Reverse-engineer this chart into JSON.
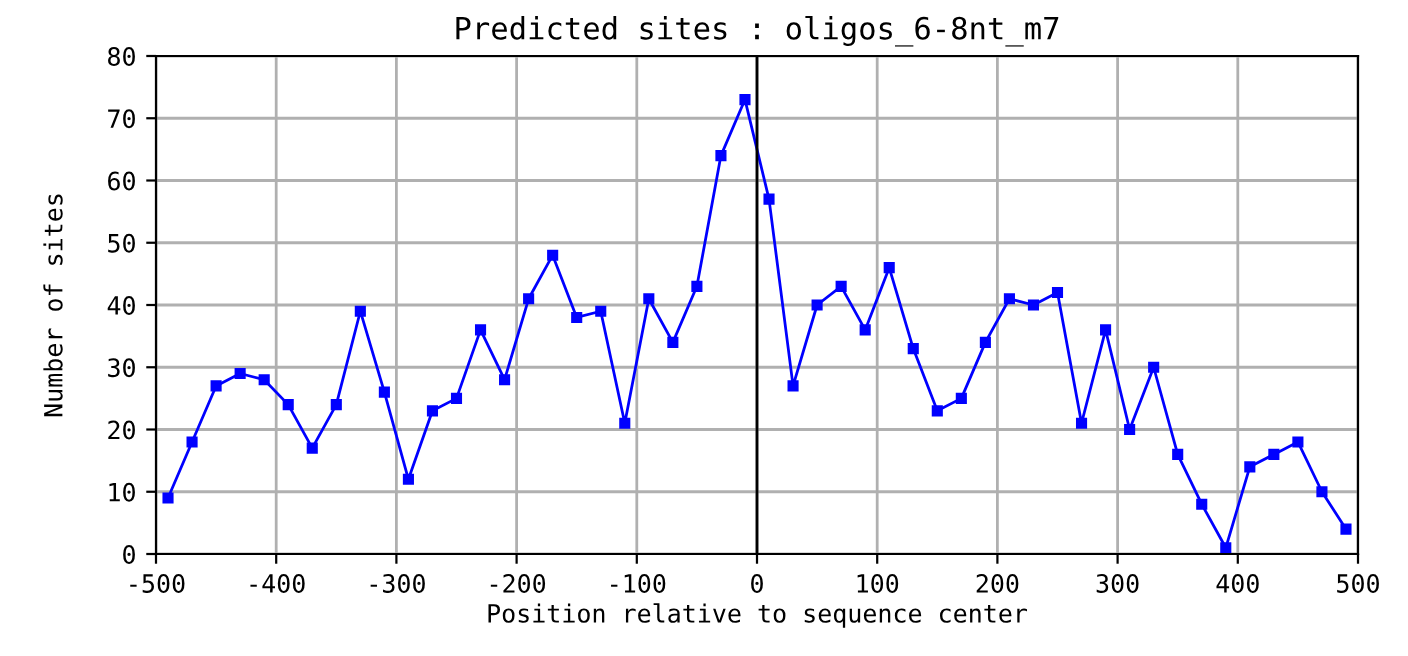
{
  "chart_data": {
    "type": "line",
    "title": "Predicted sites : oligos_6-8nt_m7",
    "xlabel": "Position relative to sequence center",
    "ylabel": "Number of sites",
    "x": [
      -490,
      -470,
      -450,
      -430,
      -410,
      -390,
      -370,
      -350,
      -330,
      -310,
      -290,
      -270,
      -250,
      -230,
      -210,
      -190,
      -170,
      -150,
      -130,
      -110,
      -90,
      -70,
      -50,
      -30,
      -10,
      10,
      30,
      50,
      70,
      90,
      110,
      130,
      150,
      170,
      190,
      210,
      230,
      250,
      270,
      290,
      310,
      330,
      350,
      370,
      390,
      410,
      430,
      450,
      470,
      490
    ],
    "series": [
      {
        "color": "#0000ff",
        "values": [
          9,
          18,
          27,
          29,
          28,
          24,
          17,
          24,
          39,
          26,
          12,
          23,
          25,
          36,
          28,
          41,
          48,
          38,
          39,
          21,
          41,
          34,
          43,
          64,
          73,
          57,
          27,
          40,
          43,
          36,
          46,
          33,
          23,
          25,
          34,
          41,
          40,
          42,
          21,
          36,
          20,
          30,
          16,
          8,
          1,
          14,
          16,
          18,
          10,
          4
        ]
      }
    ],
    "xlim": [
      -500,
      500
    ],
    "xticks": [
      -500,
      -400,
      -300,
      -200,
      -100,
      0,
      100,
      200,
      300,
      400,
      500
    ],
    "ylim": [
      0,
      80
    ],
    "yticks": [
      0,
      10,
      20,
      30,
      40,
      50,
      60,
      70,
      80
    ],
    "ref_lines": [
      {
        "axis": "x",
        "value": 0,
        "color": "#000000"
      }
    ],
    "grid": true,
    "marker": "square",
    "line_style": "solid"
  }
}
